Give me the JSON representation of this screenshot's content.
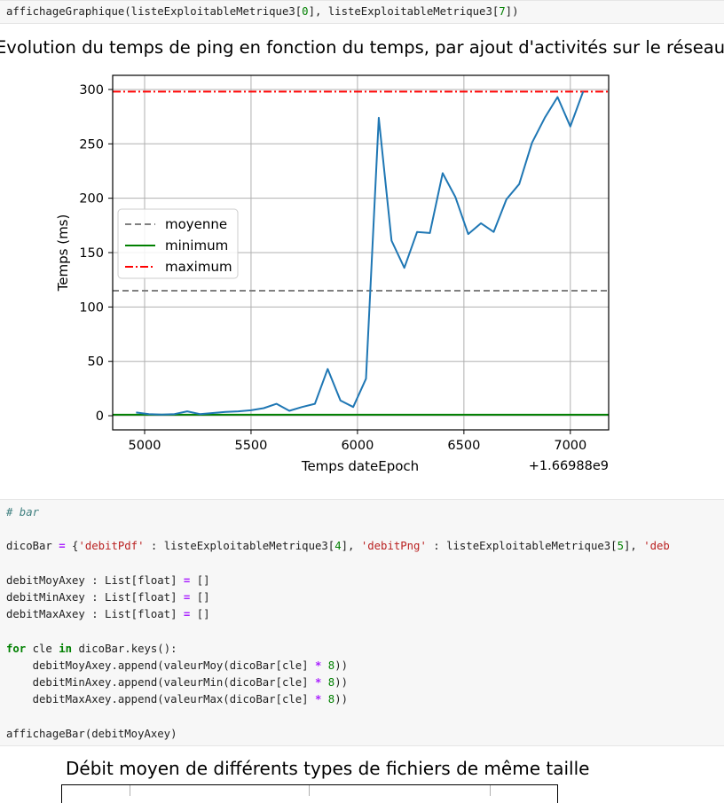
{
  "cell1": {
    "lines": [
      [
        [
          "t",
          "affichageGraphique(listeExploitableMetrique3["
        ],
        [
          "num",
          "0"
        ],
        [
          "t",
          "], listeExploitableMetrique3["
        ],
        [
          "num",
          "7"
        ],
        [
          "t",
          "])"
        ]
      ]
    ]
  },
  "chart_data": [
    {
      "type": "line",
      "title": "Evolution du temps de ping en fonction du temps, par ajout d'activités sur le réseau",
      "xlabel": "Temps dateEpoch",
      "ylabel": "Temps (ms)",
      "x_offset_label": "+1.66988e9",
      "xlim": [
        4850,
        7180
      ],
      "ylim": [
        -13,
        313
      ],
      "xticks": [
        5000,
        5500,
        6000,
        6500,
        7000
      ],
      "yticks": [
        0,
        50,
        100,
        150,
        200,
        250,
        300
      ],
      "grid": true,
      "legend_position": "center-left",
      "series": [
        {
          "name": "",
          "color": "#1f77b4",
          "style": "solid",
          "x": [
            4960,
            5020,
            5080,
            5140,
            5200,
            5260,
            5320,
            5380,
            5440,
            5500,
            5560,
            5620,
            5680,
            5740,
            5800,
            5860,
            5920,
            5980,
            6040,
            6100,
            6160,
            6220,
            6280,
            6340,
            6400,
            6460,
            6520,
            6580,
            6640,
            6700,
            6760,
            6820,
            6880,
            6940,
            7000,
            7060
          ],
          "y": [
            3,
            1.5,
            1,
            1.5,
            4,
            1.5,
            2.5,
            3.5,
            4,
            5,
            7,
            11,
            4.5,
            8,
            11,
            43,
            14,
            8,
            34,
            274,
            161,
            136,
            169,
            168,
            223,
            201,
            167,
            177,
            169,
            199,
            213,
            251,
            274,
            293,
            266,
            298
          ]
        },
        {
          "name": "moyenne",
          "color": "#808080",
          "style": "dashed",
          "y": 115
        },
        {
          "name": "minimum",
          "color": "#008000",
          "style": "solid",
          "y": 1
        },
        {
          "name": "maximum",
          "color": "#ff0000",
          "style": "dashdot",
          "y": 298
        }
      ]
    },
    {
      "type": "bar",
      "title": "Débit moyen de différents types de fichiers de même taille"
    }
  ],
  "cell2": {
    "lines": [
      [
        [
          "cmt",
          "# bar"
        ]
      ],
      [],
      [
        [
          "t",
          "dicoBar "
        ],
        [
          "op",
          "="
        ],
        [
          "t",
          " {"
        ],
        [
          "str",
          "'debitPdf'"
        ],
        [
          "t",
          " : listeExploitableMetrique3["
        ],
        [
          "num",
          "4"
        ],
        [
          "t",
          "], "
        ],
        [
          "str",
          "'debitPng'"
        ],
        [
          "t",
          " : listeExploitableMetrique3["
        ],
        [
          "num",
          "5"
        ],
        [
          "t",
          "], "
        ],
        [
          "str",
          "'deb"
        ]
      ],
      [],
      [
        [
          "t",
          "debitMoyAxey : List[float] "
        ],
        [
          "op",
          "="
        ],
        [
          "t",
          " []"
        ]
      ],
      [
        [
          "t",
          "debitMinAxey : List[float] "
        ],
        [
          "op",
          "="
        ],
        [
          "t",
          " []"
        ]
      ],
      [
        [
          "t",
          "debitMaxAxey : List[float] "
        ],
        [
          "op",
          "="
        ],
        [
          "t",
          " []"
        ]
      ],
      [],
      [
        [
          "kw",
          "for"
        ],
        [
          "t",
          " cle "
        ],
        [
          "kw",
          "in"
        ],
        [
          "t",
          " dicoBar.keys():"
        ]
      ],
      [
        [
          "t",
          "    debitMoyAxey.append(valeurMoy(dicoBar[cle] "
        ],
        [
          "op",
          "*"
        ],
        [
          "t",
          " "
        ],
        [
          "num",
          "8"
        ],
        [
          "t",
          "))"
        ]
      ],
      [
        [
          "t",
          "    debitMinAxey.append(valeurMin(dicoBar[cle] "
        ],
        [
          "op",
          "*"
        ],
        [
          "t",
          " "
        ],
        [
          "num",
          "8"
        ],
        [
          "t",
          "))"
        ]
      ],
      [
        [
          "t",
          "    debitMaxAxey.append(valeurMax(dicoBar[cle] "
        ],
        [
          "op",
          "*"
        ],
        [
          "t",
          " "
        ],
        [
          "num",
          "8"
        ],
        [
          "t",
          "))"
        ]
      ],
      [],
      [
        [
          "t",
          "affichageBar(debitMoyAxey)"
        ]
      ]
    ]
  }
}
